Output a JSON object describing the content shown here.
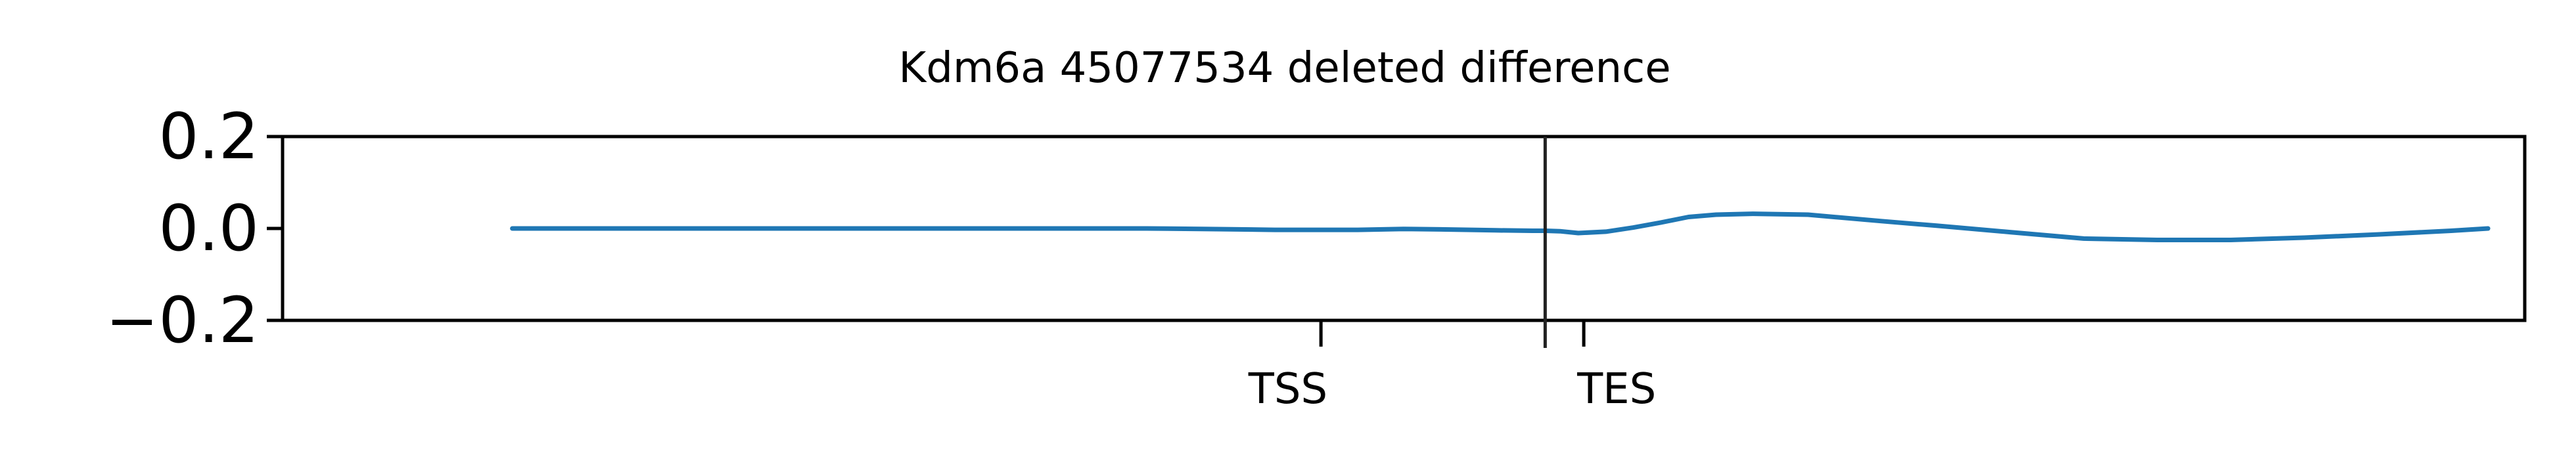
{
  "chart_data": {
    "type": "line",
    "title": "Kdm6a 45077534 deleted difference",
    "xlabel": "",
    "ylabel": "",
    "ylim": [
      -0.2,
      0.2
    ],
    "xlim": [
      -20,
      1200
    ],
    "yticks": [
      0.2,
      0.0,
      -0.2
    ],
    "ytick_labels": [
      "0.2",
      "0.0",
      "−0.2"
    ],
    "xtick_labels": [
      "TSS",
      "TES"
    ],
    "xticks": [
      545,
      688
    ],
    "marker_x": 667,
    "grid": false,
    "legend": "none",
    "series": [
      {
        "color": "#1f77b4",
        "x": [
          105,
          150,
          200,
          250,
          300,
          350,
          400,
          450,
          480,
          500,
          520,
          545,
          565,
          590,
          610,
          640,
          660,
          667,
          675,
          685,
          700,
          715,
          730,
          745,
          760,
          780,
          810,
          850,
          880,
          920,
          960,
          1000,
          1040,
          1080,
          1120,
          1160,
          1180
        ],
        "y": [
          0.0,
          0.0,
          0.0,
          0.0,
          0.0,
          0.0,
          0.0,
          0.0,
          -0.001,
          -0.002,
          -0.003,
          -0.003,
          -0.003,
          -0.001,
          -0.002,
          -0.004,
          -0.005,
          -0.005,
          -0.006,
          -0.01,
          -0.007,
          0.002,
          0.013,
          0.025,
          0.03,
          0.032,
          0.03,
          0.016,
          0.006,
          -0.008,
          -0.022,
          -0.025,
          -0.025,
          -0.02,
          -0.013,
          -0.005,
          0.0
        ]
      }
    ]
  }
}
